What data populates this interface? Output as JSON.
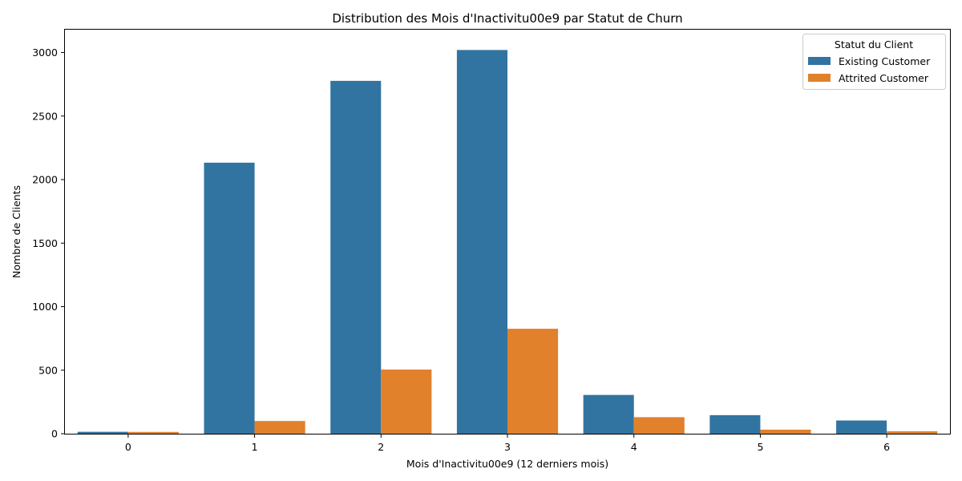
{
  "chart_data": {
    "type": "bar",
    "title": "Distribution des Mois d'Inactivitu00e9 par Statut de Churn",
    "xlabel": "Mois d'Inactivitu00e9 (12 derniers mois)",
    "ylabel": "Nombre de Clients",
    "categories": [
      "0",
      "1",
      "2",
      "3",
      "4",
      "5",
      "6"
    ],
    "ylim": [
      0,
      3180
    ],
    "yticks": [
      0,
      500,
      1000,
      1500,
      2000,
      2500,
      3000
    ],
    "ytick_labels": [
      "0",
      "500",
      "1000",
      "1500",
      "2000",
      "2500",
      "3000"
    ],
    "grid": false,
    "legend": {
      "title": "Statut du Client",
      "placement": "top-right"
    },
    "series": [
      {
        "name": "Existing Customer",
        "color": "#3274a1",
        "values": [
          15,
          2133,
          2777,
          3020,
          305,
          146,
          104
        ]
      },
      {
        "name": "Attrited Customer",
        "color": "#e1812c",
        "values": [
          14,
          100,
          505,
          826,
          130,
          32,
          19
        ]
      }
    ]
  }
}
